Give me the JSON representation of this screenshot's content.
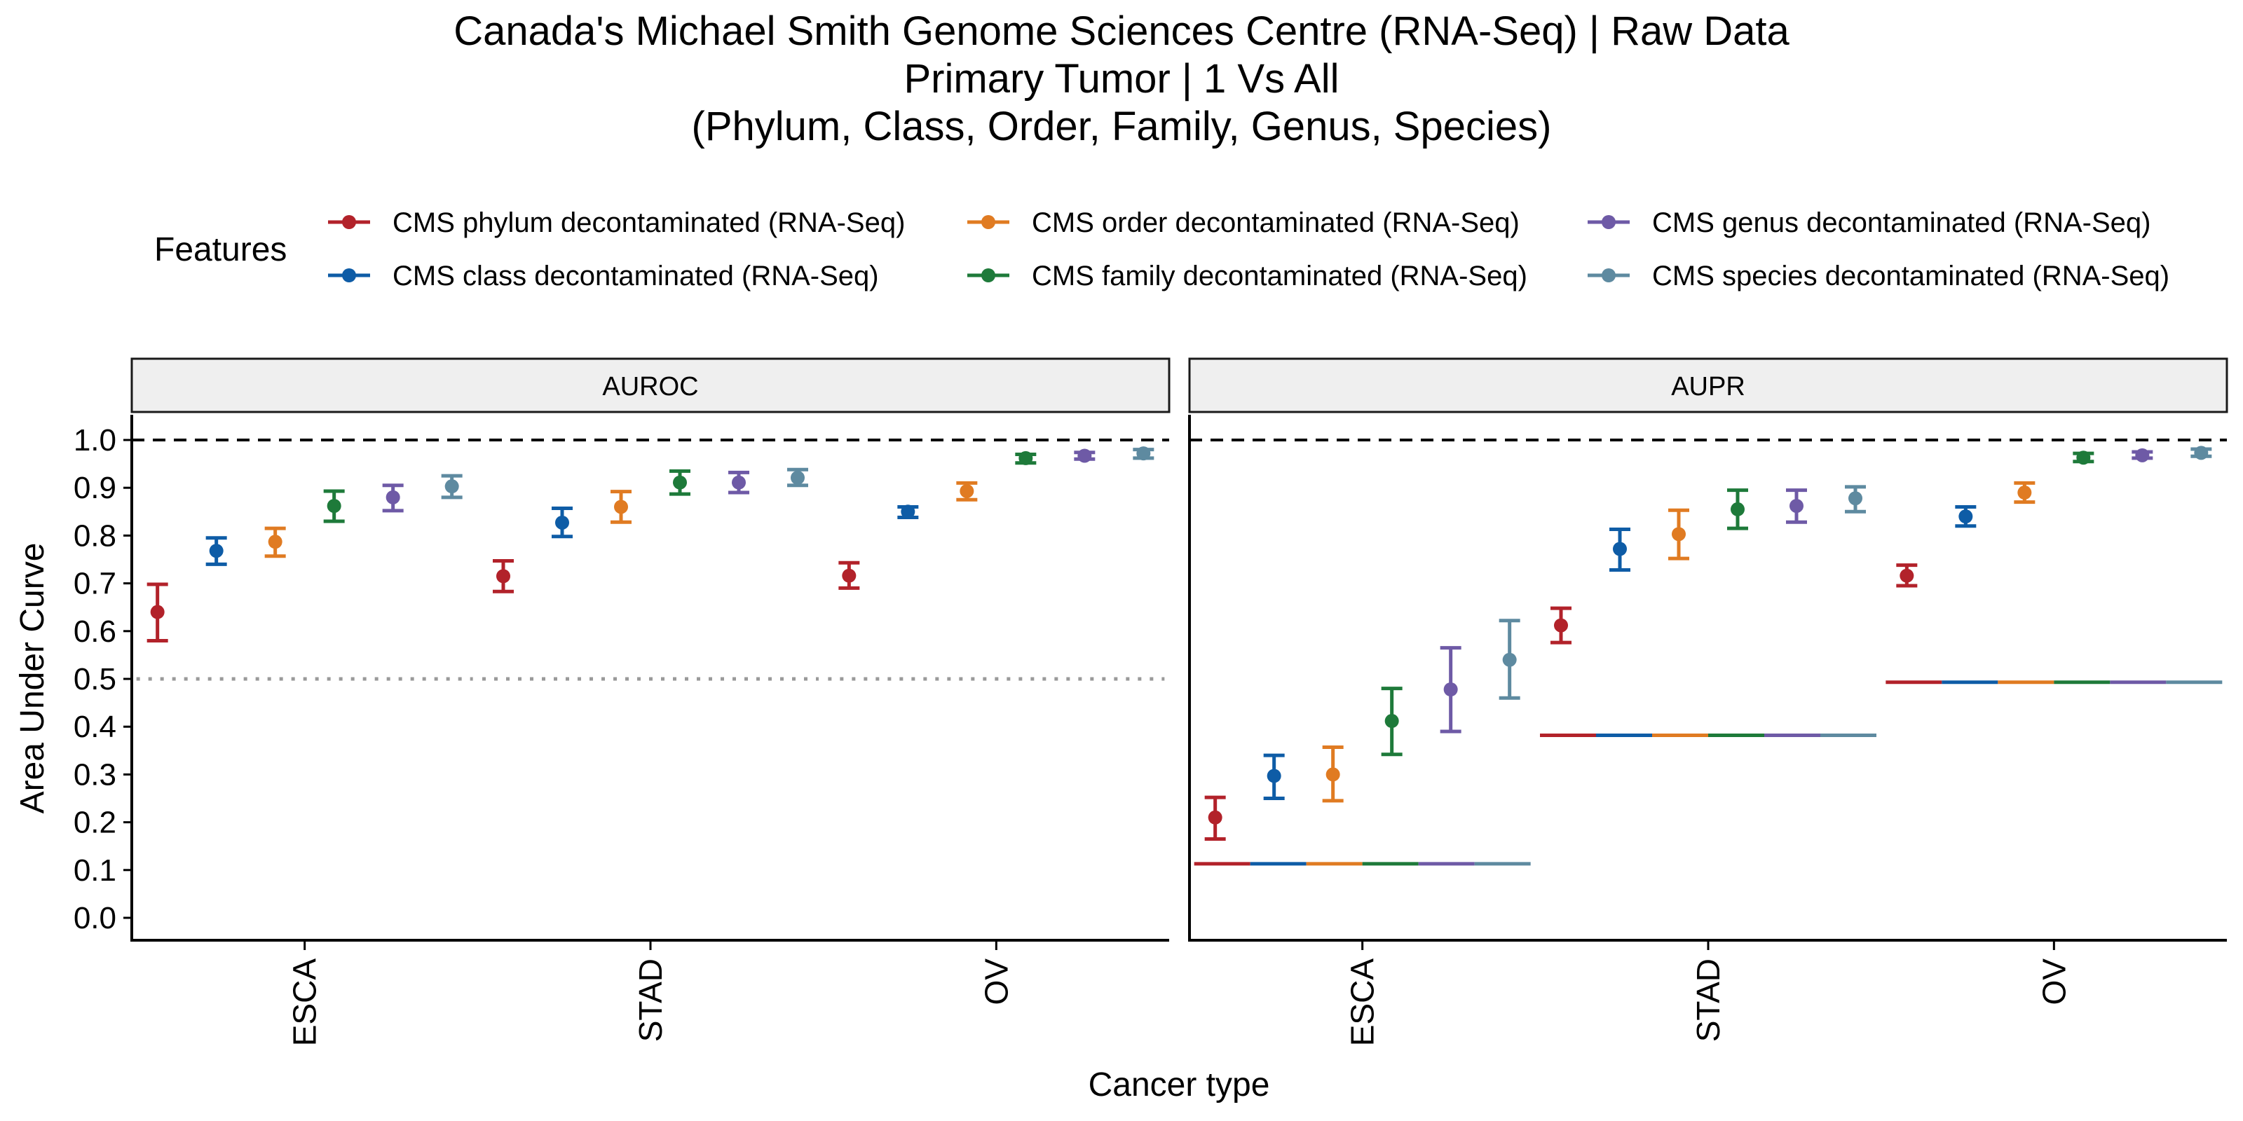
{
  "chart_data": {
    "type": "scatter",
    "title_lines": [
      "Canada's Michael Smith Genome Sciences Centre (RNA-Seq) | Raw Data",
      "Primary Tumor | 1 Vs All",
      "(Phylum, Class, Order, Family, Genus, Species)"
    ],
    "legend": {
      "title": "Features",
      "placement": "top",
      "entries": [
        {
          "label": "CMS phylum decontaminated (RNA-Seq)",
          "color": "#B2222A"
        },
        {
          "label": "CMS class decontaminated (RNA-Seq)",
          "color": "#0E5CA6"
        },
        {
          "label": "CMS order decontaminated (RNA-Seq)",
          "color": "#E07B22"
        },
        {
          "label": "CMS family decontaminated (RNA-Seq)",
          "color": "#1E7A3A"
        },
        {
          "label": "CMS genus decontaminated (RNA-Seq)",
          "color": "#6E5AA6"
        },
        {
          "label": "CMS species decontaminated (RNA-Seq)",
          "color": "#5E8AA0"
        }
      ]
    },
    "xlabel": "Cancer type",
    "ylabel": "Area Under Curve",
    "ylim": [
      0,
      1
    ],
    "yticks": [
      "0.0",
      "0.1",
      "0.2",
      "0.3",
      "0.4",
      "0.5",
      "0.6",
      "0.7",
      "0.8",
      "0.9",
      "1.0"
    ],
    "categories": [
      "ESCA",
      "STAD",
      "OV"
    ],
    "reference_line": 1.0,
    "grid": false,
    "panels": [
      {
        "name": "AUROC",
        "chance": [
          0.5,
          0.5,
          0.5
        ],
        "chance_style": "dotted",
        "series": [
          {
            "mean": [
              0.64,
              0.715,
              0.716
            ],
            "lo": [
              0.58,
              0.683,
              0.69
            ],
            "hi": [
              0.698,
              0.747,
              0.743
            ]
          },
          {
            "mean": [
              0.768,
              0.827,
              0.85
            ],
            "lo": [
              0.74,
              0.798,
              0.838
            ],
            "hi": [
              0.795,
              0.857,
              0.86
            ]
          },
          {
            "mean": [
              0.787,
              0.86,
              0.893
            ],
            "lo": [
              0.757,
              0.828,
              0.875
            ],
            "hi": [
              0.815,
              0.892,
              0.91
            ]
          },
          {
            "mean": [
              0.862,
              0.911,
              0.962
            ],
            "lo": [
              0.83,
              0.887,
              0.952
            ],
            "hi": [
              0.893,
              0.935,
              0.97
            ]
          },
          {
            "mean": [
              0.88,
              0.911,
              0.967
            ],
            "lo": [
              0.852,
              0.89,
              0.96
            ],
            "hi": [
              0.905,
              0.932,
              0.974
            ]
          },
          {
            "mean": [
              0.903,
              0.921,
              0.972
            ],
            "lo": [
              0.88,
              0.905,
              0.962
            ],
            "hi": [
              0.925,
              0.938,
              0.98
            ]
          }
        ]
      },
      {
        "name": "AUPR",
        "chance": [
          0.113,
          0.382,
          0.493
        ],
        "chance_style": "solid",
        "series": [
          {
            "mean": [
              0.21,
              0.612,
              0.716
            ],
            "lo": [
              0.165,
              0.576,
              0.695
            ],
            "hi": [
              0.252,
              0.648,
              0.738
            ]
          },
          {
            "mean": [
              0.297,
              0.772,
              0.84
            ],
            "lo": [
              0.25,
              0.728,
              0.82
            ],
            "hi": [
              0.34,
              0.813,
              0.86
            ]
          },
          {
            "mean": [
              0.3,
              0.803,
              0.89
            ],
            "lo": [
              0.245,
              0.752,
              0.87
            ],
            "hi": [
              0.357,
              0.853,
              0.91
            ]
          },
          {
            "mean": [
              0.412,
              0.855,
              0.963
            ],
            "lo": [
              0.342,
              0.815,
              0.955
            ],
            "hi": [
              0.48,
              0.895,
              0.972
            ]
          },
          {
            "mean": [
              0.478,
              0.862,
              0.968
            ],
            "lo": [
              0.39,
              0.828,
              0.962
            ],
            "hi": [
              0.565,
              0.895,
              0.975
            ]
          },
          {
            "mean": [
              0.54,
              0.878,
              0.973
            ],
            "lo": [
              0.46,
              0.85,
              0.966
            ],
            "hi": [
              0.622,
              0.902,
              0.981
            ]
          }
        ]
      }
    ]
  }
}
